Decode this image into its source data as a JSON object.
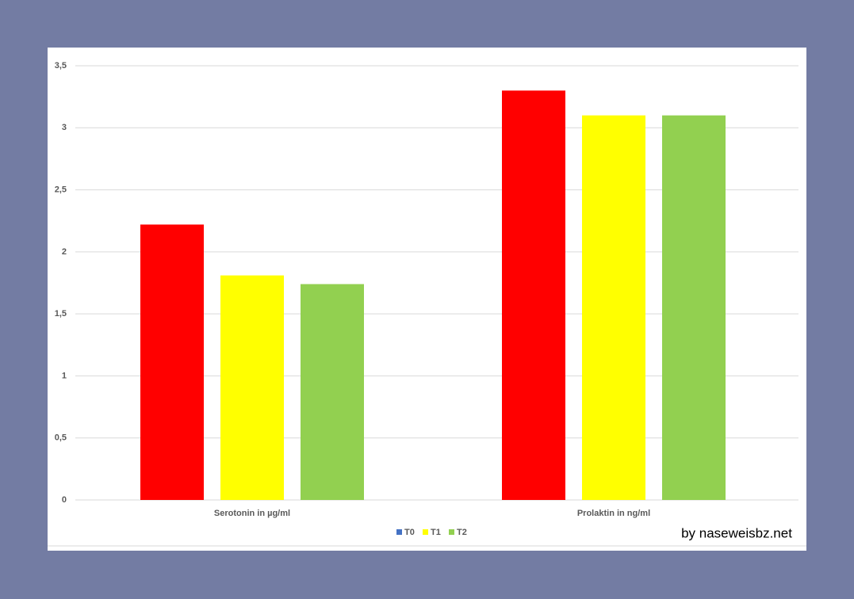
{
  "chart_data": {
    "type": "bar",
    "categories": [
      "Serotonin in µg/ml",
      "Prolaktin in ng/ml"
    ],
    "series": [
      {
        "name": "T0",
        "color": "#ff0000",
        "legend_color": "#4472c4",
        "values": [
          2.22,
          3.3
        ]
      },
      {
        "name": "T1",
        "color": "#ffff00",
        "legend_color": "#ffff00",
        "values": [
          1.81,
          3.1
        ]
      },
      {
        "name": "T2",
        "color": "#92d050",
        "legend_color": "#92d050",
        "values": [
          1.74,
          3.1
        ]
      }
    ],
    "ylim": [
      0,
      3.5
    ],
    "yticks": [
      0,
      {
        "value": 0.5,
        "label": "0,5"
      },
      1,
      {
        "value": 1.5,
        "label": "1,5"
      },
      2,
      {
        "value": 2.5,
        "label": "2,5"
      },
      3,
      {
        "value": 3.5,
        "label": "3,5"
      }
    ],
    "grid": true,
    "legend": "bottom",
    "annotation": "by naseweisbz.net"
  }
}
